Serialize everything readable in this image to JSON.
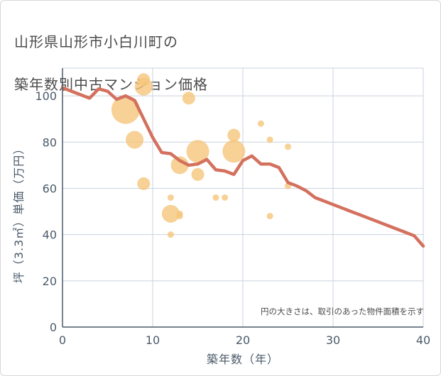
{
  "title_lines": [
    "山形県山形市小白川町の",
    "築年数別中古マンション価格"
  ],
  "note": "円の大きさは、取引のあった物件面積を示す",
  "colors": {
    "line": "#d4715e",
    "bubble": "#f5c57a",
    "grid": "#c9d3df",
    "axis": "#4a5a6a",
    "text": "#4b4b4b"
  },
  "chart_data": {
    "type": "scatter",
    "xlabel": "築年数（年）",
    "ylabel": "坪（3.3㎡）単価（万円）",
    "xlim": [
      0,
      40
    ],
    "ylim": [
      0,
      112
    ],
    "xticks": [
      0,
      10,
      20,
      30,
      40
    ],
    "yticks": [
      0,
      20,
      40,
      60,
      80,
      100
    ],
    "grid": true,
    "trend_line": {
      "x": [
        0,
        1,
        2,
        3,
        4,
        5,
        6,
        7,
        8,
        9,
        10,
        11,
        12,
        13,
        14,
        15,
        16,
        17,
        18,
        19,
        20,
        21,
        22,
        23,
        24,
        25,
        26,
        27,
        28,
        29,
        30,
        31,
        32,
        33,
        34,
        35,
        36,
        37,
        38,
        39,
        40
      ],
      "y": [
        103.5,
        102,
        100.5,
        99,
        103,
        102,
        98.5,
        100,
        98,
        90,
        82,
        75.5,
        75,
        72,
        70,
        70.5,
        72.5,
        68,
        67.5,
        66,
        72,
        74,
        70.5,
        70.5,
        69,
        62.5,
        61,
        59,
        56,
        54.5,
        53,
        51.5,
        50,
        48.5,
        47,
        45.5,
        44,
        42.5,
        41,
        39.5,
        35
      ]
    },
    "points": [
      {
        "x": 7,
        "y": 94,
        "size": 5
      },
      {
        "x": 9,
        "y": 107,
        "size": 2
      },
      {
        "x": 9,
        "y": 104,
        "size": 3
      },
      {
        "x": 8,
        "y": 81,
        "size": 3
      },
      {
        "x": 9,
        "y": 62,
        "size": 2
      },
      {
        "x": 12,
        "y": 56,
        "size": 1
      },
      {
        "x": 12,
        "y": 49,
        "size": 3
      },
      {
        "x": 12,
        "y": 40,
        "size": 1
      },
      {
        "x": 13,
        "y": 70,
        "size": 3
      },
      {
        "x": 13,
        "y": 49,
        "size": 1
      },
      {
        "x": 13,
        "y": 48,
        "size": 1
      },
      {
        "x": 14,
        "y": 99,
        "size": 2
      },
      {
        "x": 15,
        "y": 76,
        "size": 4
      },
      {
        "x": 15,
        "y": 66,
        "size": 2
      },
      {
        "x": 17,
        "y": 56,
        "size": 1
      },
      {
        "x": 18,
        "y": 56,
        "size": 1
      },
      {
        "x": 19,
        "y": 83,
        "size": 2
      },
      {
        "x": 19,
        "y": 76,
        "size": 4
      },
      {
        "x": 22,
        "y": 88,
        "size": 1
      },
      {
        "x": 23,
        "y": 81,
        "size": 1
      },
      {
        "x": 23,
        "y": 48,
        "size": 1
      },
      {
        "x": 25,
        "y": 78,
        "size": 1
      },
      {
        "x": 25,
        "y": 61,
        "size": 1
      }
    ]
  }
}
